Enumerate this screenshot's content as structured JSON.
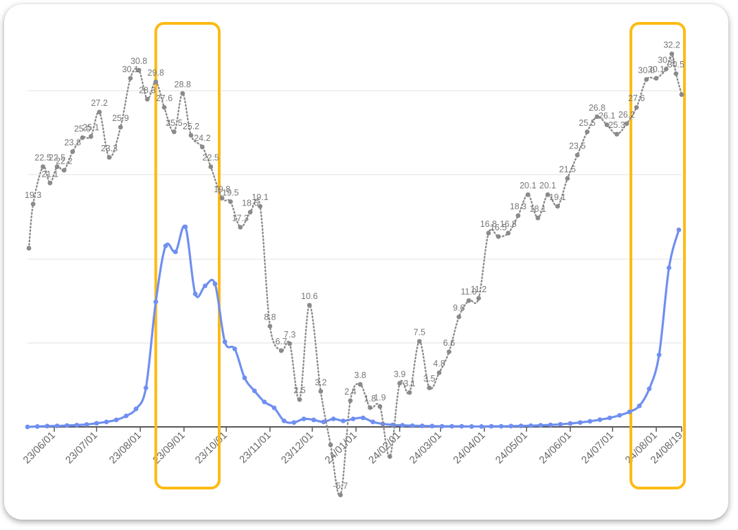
{
  "chart_data": {
    "type": "line",
    "title": "",
    "xlabel": "",
    "ylabel": "",
    "grid": true,
    "legend": "none",
    "x_ticks": [
      "23/06/01",
      "23/07/01",
      "23/08/01",
      "23/09/01",
      "23/10/01",
      "23/11/01",
      "23/12/01",
      "24/01/01",
      "24/02/01",
      "24/03/01",
      "24/04/01",
      "24/05/01",
      "24/06/01",
      "24/07/01",
      "24/08/01",
      "24/08/19"
    ],
    "x_range": [
      "2023-05-13",
      "2024-08-19"
    ],
    "dotted_ylim": [
      -6,
      40
    ],
    "solid_ylim": [
      0,
      1
    ],
    "highlights": [
      {
        "from": "2023-08-12",
        "to": "2023-09-26",
        "color": "#FDBA12"
      },
      {
        "from": "2024-07-14",
        "to": "2024-08-21",
        "color": "#FDBA12"
      }
    ],
    "series": [
      {
        "style": "dotted",
        "color": "#8a8a8a",
        "points": [
          {
            "x": "2023-05-14",
            "y": 15.5,
            "label": ""
          },
          {
            "x": "2023-05-17",
            "y": 19.3,
            "label": "19.3"
          },
          {
            "x": "2023-05-24",
            "y": 22.5,
            "label": "22.5"
          },
          {
            "x": "2023-05-29",
            "y": 21.1,
            "label": "21.1"
          },
          {
            "x": "2023-06-03",
            "y": 22.5,
            "label": "22.5"
          },
          {
            "x": "2023-06-08",
            "y": 22.2,
            "label": "22.2"
          },
          {
            "x": "2023-06-14",
            "y": 23.8,
            "label": "23.8"
          },
          {
            "x": "2023-06-21",
            "y": 25.0,
            "label": "25.0"
          },
          {
            "x": "2023-06-27",
            "y": 25.1,
            "label": "25.1"
          },
          {
            "x": "2023-07-03",
            "y": 27.2,
            "label": "27.2"
          },
          {
            "x": "2023-07-10",
            "y": 23.3,
            "label": "23.3"
          },
          {
            "x": "2023-07-18",
            "y": 25.9,
            "label": "25.9"
          },
          {
            "x": "2023-07-25",
            "y": 30.1,
            "label": "30.1"
          },
          {
            "x": "2023-07-31",
            "y": 30.8,
            "label": "30.8"
          },
          {
            "x": "2023-08-06",
            "y": 28.3,
            "label": "28.3"
          },
          {
            "x": "2023-08-12",
            "y": 29.8,
            "label": "29.8"
          },
          {
            "x": "2023-08-18",
            "y": 27.6,
            "label": "27.6"
          },
          {
            "x": "2023-08-25",
            "y": 25.5,
            "label": "25.5"
          },
          {
            "x": "2023-08-31",
            "y": 28.8,
            "label": "28.8"
          },
          {
            "x": "2023-09-06",
            "y": 25.2,
            "label": "25.2"
          },
          {
            "x": "2023-09-14",
            "y": 24.2,
            "label": "24.2"
          },
          {
            "x": "2023-09-20",
            "y": 22.5,
            "label": "22.5"
          },
          {
            "x": "2023-09-28",
            "y": 19.8,
            "label": "19.8"
          },
          {
            "x": "2023-10-04",
            "y": 19.5,
            "label": "19.5"
          },
          {
            "x": "2023-10-11",
            "y": 17.3,
            "label": "17.3"
          },
          {
            "x": "2023-10-18",
            "y": 18.6,
            "label": "18.6"
          },
          {
            "x": "2023-10-25",
            "y": 19.1,
            "label": "19.1"
          },
          {
            "x": "2023-11-01",
            "y": 8.8,
            "label": "8.8"
          },
          {
            "x": "2023-11-09",
            "y": 6.7,
            "label": "6.7"
          },
          {
            "x": "2023-11-15",
            "y": 7.3,
            "label": "7.3"
          },
          {
            "x": "2023-11-22",
            "y": 2.5,
            "label": "2.5"
          },
          {
            "x": "2023-11-29",
            "y": 10.6,
            "label": "10.6"
          },
          {
            "x": "2023-12-07",
            "y": 3.2,
            "label": "3.2"
          },
          {
            "x": "2023-12-14",
            "y": -1.4,
            "label": ""
          },
          {
            "x": "2023-12-21",
            "y": -5.7,
            "label": "-5.7"
          },
          {
            "x": "2023-12-28",
            "y": 2.4,
            "label": "2.4"
          },
          {
            "x": "2024-01-04",
            "y": 3.8,
            "label": "3.8"
          },
          {
            "x": "2024-01-11",
            "y": 1.8,
            "label": "1.8"
          },
          {
            "x": "2024-01-18",
            "y": 1.9,
            "label": "1.9"
          },
          {
            "x": "2024-01-25",
            "y": -2.4,
            "label": ""
          },
          {
            "x": "2024-02-01",
            "y": 3.9,
            "label": "3.9"
          },
          {
            "x": "2024-02-08",
            "y": 3.1,
            "label": "3.1"
          },
          {
            "x": "2024-02-15",
            "y": 7.5,
            "label": "7.5"
          },
          {
            "x": "2024-02-22",
            "y": 3.5,
            "label": "3.5"
          },
          {
            "x": "2024-02-29",
            "y": 4.8,
            "label": "4.8"
          },
          {
            "x": "2024-03-07",
            "y": 6.6,
            "label": "6.6"
          },
          {
            "x": "2024-03-14",
            "y": 9.6,
            "label": "9.6"
          },
          {
            "x": "2024-03-21",
            "y": 11.0,
            "label": "11.0"
          },
          {
            "x": "2024-03-28",
            "y": 11.2,
            "label": "11.2"
          },
          {
            "x": "2024-04-04",
            "y": 16.8,
            "label": "16.8"
          },
          {
            "x": "2024-04-11",
            "y": 16.5,
            "label": "16.5"
          },
          {
            "x": "2024-04-18",
            "y": 16.8,
            "label": "16.8"
          },
          {
            "x": "2024-04-25",
            "y": 18.3,
            "label": "18.3"
          },
          {
            "x": "2024-05-02",
            "y": 20.1,
            "label": "20.1"
          },
          {
            "x": "2024-05-09",
            "y": 18.1,
            "label": "18.1"
          },
          {
            "x": "2024-05-16",
            "y": 20.1,
            "label": "20.1"
          },
          {
            "x": "2024-05-23",
            "y": 19.1,
            "label": "19.1"
          },
          {
            "x": "2024-05-30",
            "y": 21.5,
            "label": "21.5"
          },
          {
            "x": "2024-06-06",
            "y": 23.5,
            "label": "23.5"
          },
          {
            "x": "2024-06-13",
            "y": 25.5,
            "label": "25.5"
          },
          {
            "x": "2024-06-20",
            "y": 26.8,
            "label": "26.8"
          },
          {
            "x": "2024-06-27",
            "y": 26.1,
            "label": "26.1"
          },
          {
            "x": "2024-07-04",
            "y": 25.3,
            "label": "25.3"
          },
          {
            "x": "2024-07-11",
            "y": 26.2,
            "label": "26.2"
          },
          {
            "x": "2024-07-18",
            "y": 27.6,
            "label": "27.6"
          },
          {
            "x": "2024-07-25",
            "y": 30.0,
            "label": "30.0"
          },
          {
            "x": "2024-08-01",
            "y": 30.1,
            "label": "30.1"
          },
          {
            "x": "2024-08-08",
            "y": 30.9,
            "label": "30.9"
          },
          {
            "x": "2024-08-12",
            "y": 32.2,
            "label": "32.2"
          },
          {
            "x": "2024-08-15",
            "y": 30.5,
            "label": "30.5"
          },
          {
            "x": "2024-08-19",
            "y": 28.7,
            "label": ""
          }
        ]
      },
      {
        "style": "solid",
        "color": "#6f8ff0",
        "points": [
          {
            "x": "2023-05-13",
            "y": 0.0
          },
          {
            "x": "2023-05-20",
            "y": 0.002
          },
          {
            "x": "2023-05-27",
            "y": 0.004
          },
          {
            "x": "2023-06-03",
            "y": 0.005
          },
          {
            "x": "2023-06-10",
            "y": 0.007
          },
          {
            "x": "2023-06-17",
            "y": 0.009
          },
          {
            "x": "2023-06-24",
            "y": 0.012
          },
          {
            "x": "2023-07-01",
            "y": 0.018
          },
          {
            "x": "2023-07-08",
            "y": 0.025
          },
          {
            "x": "2023-07-15",
            "y": 0.035
          },
          {
            "x": "2023-07-22",
            "y": 0.055
          },
          {
            "x": "2023-07-29",
            "y": 0.09
          },
          {
            "x": "2023-08-05",
            "y": 0.195
          },
          {
            "x": "2023-08-12",
            "y": 0.625
          },
          {
            "x": "2023-08-19",
            "y": 0.905
          },
          {
            "x": "2023-08-26",
            "y": 0.875
          },
          {
            "x": "2023-09-02",
            "y": 1.0
          },
          {
            "x": "2023-09-09",
            "y": 0.665
          },
          {
            "x": "2023-09-16",
            "y": 0.705
          },
          {
            "x": "2023-09-23",
            "y": 0.715
          },
          {
            "x": "2023-09-30",
            "y": 0.425
          },
          {
            "x": "2023-10-07",
            "y": 0.39
          },
          {
            "x": "2023-10-14",
            "y": 0.245
          },
          {
            "x": "2023-10-21",
            "y": 0.18
          },
          {
            "x": "2023-10-28",
            "y": 0.125
          },
          {
            "x": "2023-11-04",
            "y": 0.095
          },
          {
            "x": "2023-11-11",
            "y": 0.03
          },
          {
            "x": "2023-11-18",
            "y": 0.022
          },
          {
            "x": "2023-11-25",
            "y": 0.04
          },
          {
            "x": "2023-12-02",
            "y": 0.035
          },
          {
            "x": "2023-12-09",
            "y": 0.025
          },
          {
            "x": "2023-12-16",
            "y": 0.04
          },
          {
            "x": "2023-12-23",
            "y": 0.03
          },
          {
            "x": "2023-12-30",
            "y": 0.04
          },
          {
            "x": "2024-01-06",
            "y": 0.045
          },
          {
            "x": "2024-01-13",
            "y": 0.025
          },
          {
            "x": "2024-01-20",
            "y": 0.015
          },
          {
            "x": "2024-01-27",
            "y": 0.01
          },
          {
            "x": "2024-02-03",
            "y": 0.008
          },
          {
            "x": "2024-02-10",
            "y": 0.006
          },
          {
            "x": "2024-02-17",
            "y": 0.005
          },
          {
            "x": "2024-02-24",
            "y": 0.004
          },
          {
            "x": "2024-03-02",
            "y": 0.003
          },
          {
            "x": "2024-03-09",
            "y": 0.003
          },
          {
            "x": "2024-03-16",
            "y": 0.003
          },
          {
            "x": "2024-03-23",
            "y": 0.002
          },
          {
            "x": "2024-03-30",
            "y": 0.002
          },
          {
            "x": "2024-04-06",
            "y": 0.003
          },
          {
            "x": "2024-04-13",
            "y": 0.003
          },
          {
            "x": "2024-04-20",
            "y": 0.004
          },
          {
            "x": "2024-04-27",
            "y": 0.005
          },
          {
            "x": "2024-05-04",
            "y": 0.006
          },
          {
            "x": "2024-05-11",
            "y": 0.008
          },
          {
            "x": "2024-05-18",
            "y": 0.01
          },
          {
            "x": "2024-05-25",
            "y": 0.013
          },
          {
            "x": "2024-06-01",
            "y": 0.017
          },
          {
            "x": "2024-06-08",
            "y": 0.022
          },
          {
            "x": "2024-06-15",
            "y": 0.028
          },
          {
            "x": "2024-06-22",
            "y": 0.036
          },
          {
            "x": "2024-06-29",
            "y": 0.045
          },
          {
            "x": "2024-07-06",
            "y": 0.058
          },
          {
            "x": "2024-07-13",
            "y": 0.075
          },
          {
            "x": "2024-07-20",
            "y": 0.105
          },
          {
            "x": "2024-07-27",
            "y": 0.19
          },
          {
            "x": "2024-08-03",
            "y": 0.36
          },
          {
            "x": "2024-08-10",
            "y": 0.795
          },
          {
            "x": "2024-08-17",
            "y": 0.985
          }
        ]
      }
    ]
  }
}
